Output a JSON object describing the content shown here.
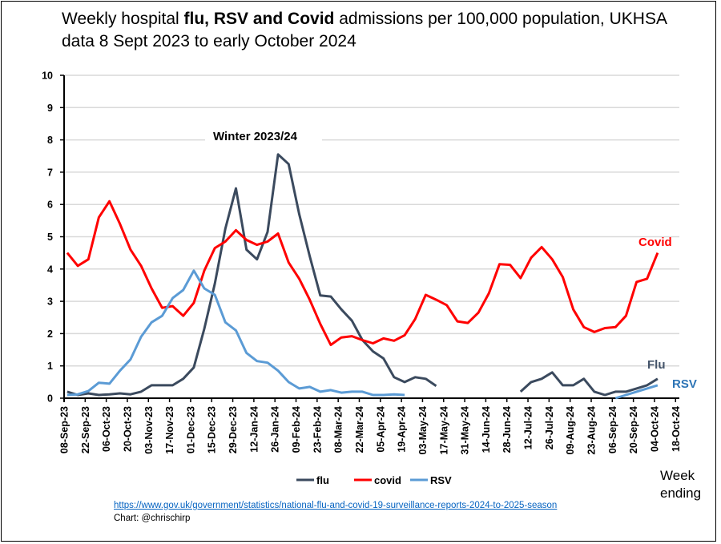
{
  "title": {
    "prefix": "Weekly hospital ",
    "bold": "flu, RSV and Covid",
    "suffix": " admissions per 100,000 population, UKHSA data 8 Sept 2023 to early October 2024"
  },
  "footer": {
    "source_link": "https://www.gov.uk/government/statistics/national-flu-and-covid-19-surveillance-reports-2024-to-2025-season",
    "credit": "Chart: @chrischirp"
  },
  "chart_data": {
    "type": "line",
    "title": "Weekly hospital flu, RSV and Covid admissions per 100,000 population, UKHSA data 8 Sept 2023 to early October 2024",
    "xlabel": "Week ending",
    "ylabel": "",
    "ylim": [
      0,
      10
    ],
    "yticks": [
      "0",
      "1",
      "2",
      "3",
      "4",
      "5",
      "6",
      "7",
      "8",
      "9",
      "10"
    ],
    "grid": true,
    "legend": "bottom",
    "xtick_labels": [
      "08-Sep-23",
      "22-Sep-23",
      "06-Oct-23",
      "20-Oct-23",
      "03-Nov-23",
      "17-Nov-23",
      "01-Dec-23",
      "15-Dec-23",
      "29-Dec-23",
      "12-Jan-24",
      "26-Jan-24",
      "09-Feb-24",
      "23-Feb-24",
      "08-Mar-24",
      "22-Mar-24",
      "05-Apr-24",
      "19-Apr-24",
      "03-May-24",
      "17-May-24",
      "31-May-24",
      "14-Jun-24",
      "28-Jun-24",
      "12-Jul-24",
      "26-Jul-24",
      "09-Aug-24",
      "23-Aug-24",
      "06-Sep-24",
      "20-Sep-24",
      "04-Oct-24",
      "18-Oct-24"
    ],
    "x_note": "weekly values, first point week of 08-Sep-23",
    "annotations": [
      "Winter 2023/24",
      "Covid",
      "Flu",
      "RSV"
    ],
    "series": [
      {
        "name": "flu",
        "color": "#3b4a5e",
        "values": [
          0.2,
          0.1,
          0.15,
          0.1,
          0.12,
          0.15,
          0.12,
          0.2,
          0.4,
          0.4,
          0.4,
          0.6,
          0.95,
          2.15,
          3.55,
          5.25,
          6.5,
          4.6,
          4.3,
          5.15,
          7.55,
          7.25,
          5.7,
          4.4,
          3.18,
          3.15,
          2.75,
          2.4,
          1.8,
          1.45,
          1.23,
          0.65,
          0.5,
          0.65,
          0.6,
          0.38,
          null,
          null,
          null,
          null,
          null,
          null,
          null,
          0.2,
          0.5,
          0.6,
          0.8,
          0.4,
          0.4,
          0.6,
          0.2,
          0.1,
          0.2,
          0.2,
          0.3,
          0.4,
          0.6
        ]
      },
      {
        "name": "covid",
        "color": "#ff0000",
        "values": [
          4.5,
          4.1,
          4.3,
          5.6,
          6.1,
          5.4,
          4.6,
          4.1,
          3.4,
          2.8,
          2.85,
          2.55,
          2.95,
          3.95,
          4.65,
          4.85,
          5.2,
          4.9,
          4.75,
          4.85,
          5.1,
          4.2,
          3.7,
          3.05,
          2.3,
          1.65,
          1.88,
          1.92,
          1.8,
          1.7,
          1.85,
          1.78,
          1.95,
          2.45,
          3.2,
          3.05,
          2.88,
          2.38,
          2.33,
          2.65,
          3.25,
          4.15,
          4.13,
          3.72,
          4.35,
          4.68,
          4.3,
          3.75,
          2.75,
          2.2,
          2.05,
          2.17,
          2.2,
          2.55,
          3.6,
          3.7,
          4.5
        ]
      },
      {
        "name": "RSV",
        "color": "#5b9bd5",
        "values": [
          0.1,
          0.12,
          0.22,
          0.48,
          0.45,
          0.85,
          1.2,
          1.9,
          2.35,
          2.55,
          3.1,
          3.35,
          3.95,
          3.4,
          3.2,
          2.35,
          2.1,
          1.4,
          1.15,
          1.1,
          0.85,
          0.5,
          0.3,
          0.35,
          0.2,
          0.25,
          0.17,
          0.2,
          0.2,
          0.1,
          0.1,
          0.12,
          0.1,
          null,
          null,
          null,
          null,
          null,
          null,
          null,
          null,
          null,
          null,
          null,
          null,
          null,
          null,
          null,
          null,
          null,
          null,
          null,
          0.0,
          0.1,
          0.2,
          0.3,
          0.4
        ]
      }
    ],
    "legend_labels": [
      "flu",
      "covid",
      "RSV"
    ],
    "annotation_colors": {
      "Covid": "#ff0000",
      "Flu": "#44546a",
      "RSV": "#2e75b6"
    }
  },
  "week_ending_label": "Week ending"
}
